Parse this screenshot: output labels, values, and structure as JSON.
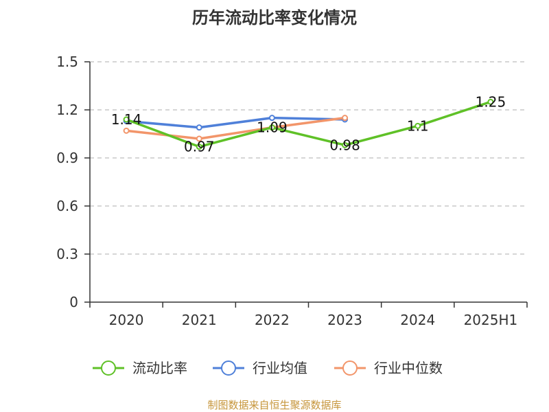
{
  "chart_data": {
    "type": "line",
    "title": "历年流动比率变化情况",
    "categories": [
      "2020",
      "2021",
      "2022",
      "2023",
      "2024",
      "2025H1"
    ],
    "y_ticks": [
      "0",
      "0.3",
      "0.6",
      "0.9",
      "1.2",
      "1.5"
    ],
    "ylim": [
      0,
      1.5
    ],
    "grid": true,
    "legend_position": "bottom",
    "series": [
      {
        "name": "流动比率",
        "color": "#5fc127",
        "values": [
          1.14,
          0.97,
          1.09,
          0.98,
          1.1,
          1.25
        ],
        "labels": [
          "1.14",
          "0.97",
          "1.09",
          "0.98",
          "1.1",
          "1.25"
        ]
      },
      {
        "name": "行业均值",
        "color": "#4f80d9",
        "values": [
          1.13,
          1.09,
          1.15,
          1.14,
          null,
          null
        ]
      },
      {
        "name": "行业中位数",
        "color": "#f2956a",
        "values": [
          1.07,
          1.02,
          1.09,
          1.15,
          null,
          null
        ]
      }
    ],
    "source": "制图数据来自恒生聚源数据库"
  }
}
